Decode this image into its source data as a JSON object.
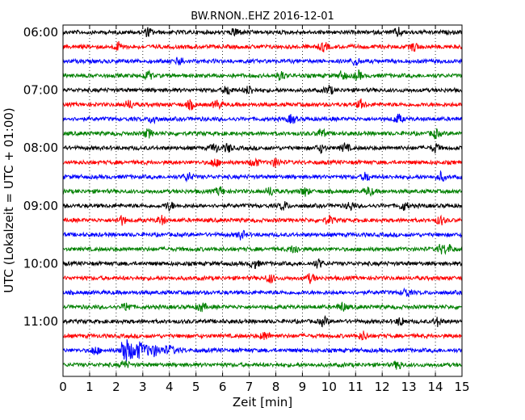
{
  "chart_data": {
    "type": "line",
    "title": "BW.RNON..EHZ 2016-12-01",
    "xlabel": "Zeit  [min]",
    "ylabel": "UTC (Lokalzeit = UTC + 01:00)",
    "xlim": [
      0,
      15
    ],
    "x_ticks": [
      "0",
      "1",
      "2",
      "3",
      "4",
      "5",
      "6",
      "7",
      "8",
      "9",
      "10",
      "11",
      "12",
      "13",
      "14",
      "15"
    ],
    "y_ticks": [
      "06:00",
      "07:00",
      "08:00",
      "09:00",
      "10:00",
      "11:00"
    ],
    "grid": {
      "x": "dotted vertical lines at every minute",
      "y": "none"
    },
    "trace_colors": [
      "#000000",
      "#ff0000",
      "#0000ff",
      "#008000"
    ],
    "traces": [
      {
        "start": "06:00",
        "color": "#000000",
        "events_min": [
          3.2,
          6.5,
          12.6
        ]
      },
      {
        "start": "06:15",
        "color": "#ff0000",
        "events_min": [
          2.1,
          9.8,
          13.2
        ]
      },
      {
        "start": "06:30",
        "color": "#0000ff",
        "events_min": [
          4.4,
          11.0
        ]
      },
      {
        "start": "06:45",
        "color": "#008000",
        "events_min": [
          3.2,
          8.2,
          10.5,
          11.1
        ]
      },
      {
        "start": "07:00",
        "color": "#000000",
        "events_min": [
          6.2,
          7.0,
          10.0
        ]
      },
      {
        "start": "07:15",
        "color": "#ff0000",
        "events_min": [
          2.5,
          4.8,
          5.8,
          11.2
        ]
      },
      {
        "start": "07:30",
        "color": "#0000ff",
        "events_min": [
          3.4,
          8.6,
          12.6
        ]
      },
      {
        "start": "07:45",
        "color": "#008000",
        "events_min": [
          3.2,
          9.7,
          14.0
        ]
      },
      {
        "start": "08:00",
        "color": "#000000",
        "events_min": [
          5.7,
          6.2,
          9.7,
          10.6,
          14.0
        ]
      },
      {
        "start": "08:15",
        "color": "#ff0000",
        "events_min": [
          5.7,
          7.2,
          8.0
        ]
      },
      {
        "start": "08:30",
        "color": "#0000ff",
        "events_min": [
          4.7,
          11.4,
          14.2
        ]
      },
      {
        "start": "08:45",
        "color": "#008000",
        "events_min": [
          5.9,
          7.8,
          9.1,
          11.5
        ]
      },
      {
        "start": "09:00",
        "color": "#000000",
        "events_min": [
          4.0,
          8.3,
          10.8,
          12.8
        ]
      },
      {
        "start": "09:15",
        "color": "#ff0000",
        "events_min": [
          2.2,
          3.7,
          10.0,
          14.2
        ]
      },
      {
        "start": "09:30",
        "color": "#0000ff",
        "events_min": [
          6.7
        ]
      },
      {
        "start": "09:45",
        "color": "#008000",
        "events_min": [
          8.7,
          14.2,
          14.5
        ]
      },
      {
        "start": "10:00",
        "color": "#000000",
        "events_min": [
          7.2,
          9.6
        ]
      },
      {
        "start": "10:15",
        "color": "#ff0000",
        "events_min": [
          7.8,
          9.3
        ]
      },
      {
        "start": "10:30",
        "color": "#0000ff",
        "events_min": [
          12.9
        ]
      },
      {
        "start": "10:45",
        "color": "#008000",
        "events_min": [
          2.4,
          5.2,
          10.5
        ]
      },
      {
        "start": "11:00",
        "color": "#000000",
        "events_min": [
          9.8,
          12.7,
          14.1
        ]
      },
      {
        "start": "11:15",
        "color": "#ff0000",
        "events_min": [
          7.6,
          11.3
        ]
      },
      {
        "start": "11:30",
        "color": "#0000ff",
        "events_min": [
          1.2,
          2.3,
          2.9,
          3.4,
          4.0
        ]
      },
      {
        "start": "11:45",
        "color": "#008000",
        "events_min": [
          2.3,
          12.6
        ]
      }
    ]
  }
}
